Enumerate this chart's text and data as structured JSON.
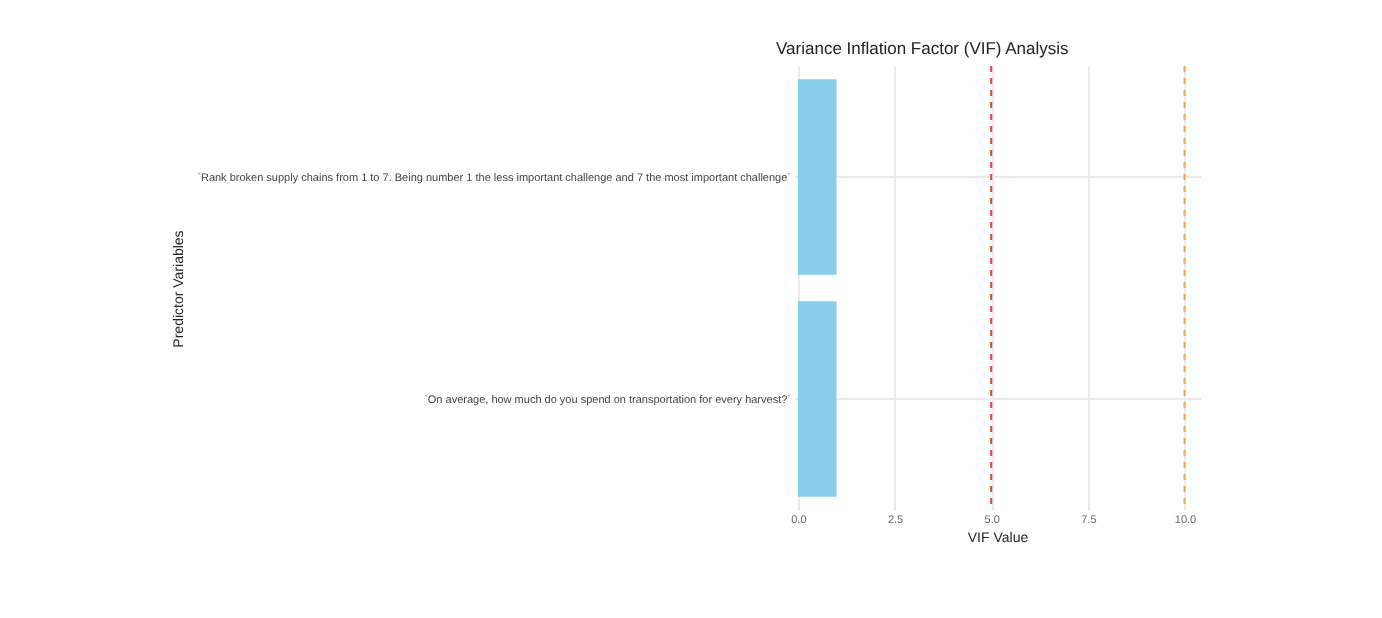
{
  "chart_data": {
    "type": "bar",
    "orientation": "horizontal",
    "title": "Variance Inflation Factor (VIF) Analysis",
    "xlabel": "VIF Value",
    "ylabel": "Predictor Variables",
    "categories": [
      "`Rank broken supply chains from 1 to 7. Being number 1 the less important challenge and 7 the most important challenge`",
      "`On average, how much do you spend on transportation for every harvest?`"
    ],
    "values": [
      1.0,
      1.0
    ],
    "color": "#87ceeb",
    "xlim": [
      -0.1,
      10.4
    ],
    "xticks": [
      {
        "value": 0,
        "label": "0.0"
      },
      2.5,
      {
        "value": 5,
        "label": "5.0"
      },
      7.5,
      {
        "value": 10,
        "label": "10.0"
      }
    ],
    "ref_lines": [
      {
        "axis": "x",
        "value": 5,
        "color": "#e8413c",
        "line_style": "dashed"
      },
      {
        "axis": "x",
        "value": 10,
        "color": "#f5a04a",
        "line_style": "dashed"
      }
    ],
    "grid": true
  }
}
